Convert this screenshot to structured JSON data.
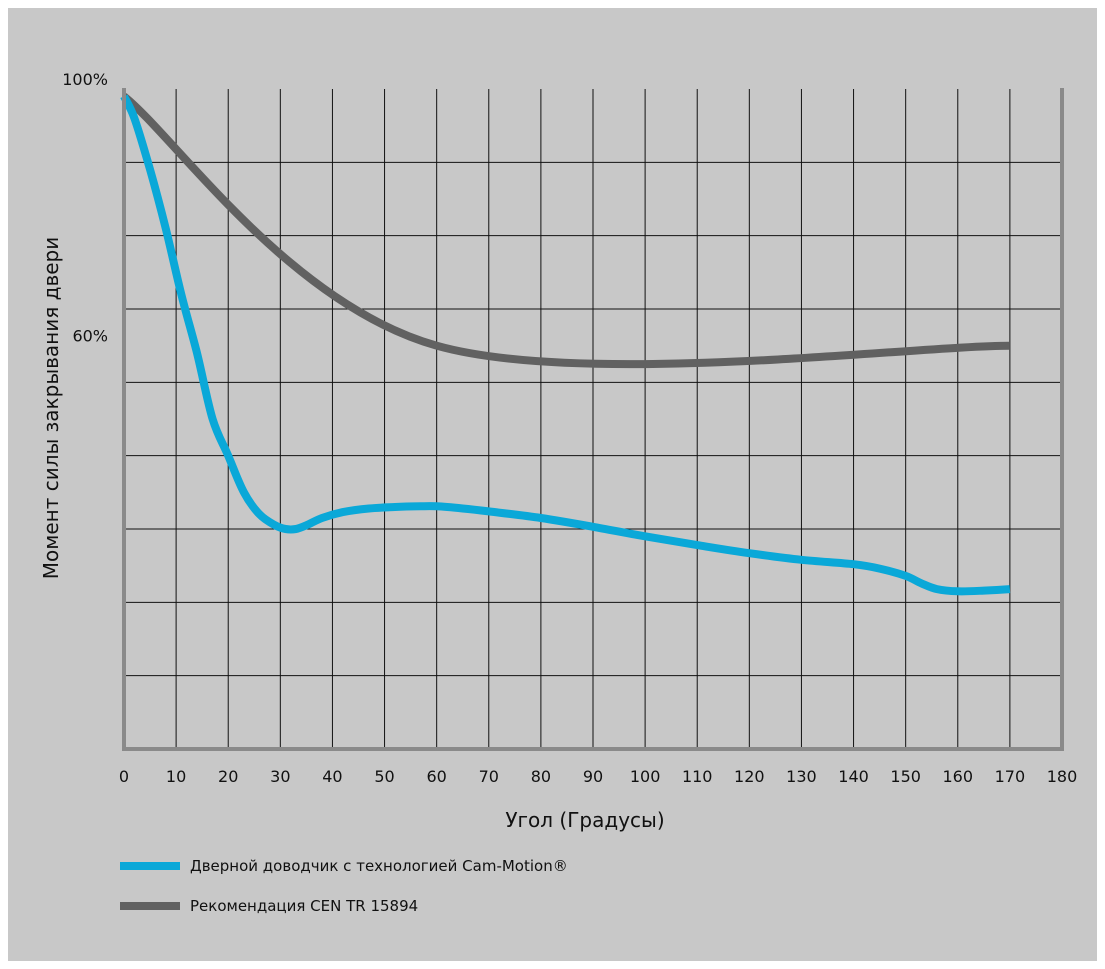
{
  "chart_data": {
    "type": "line",
    "xlabel": "Угол (Градусы)",
    "ylabel": "Момент силы закрывания двери",
    "xlim": [
      0,
      180
    ],
    "ylim": [
      0,
      90
    ],
    "x_ticks": [
      0,
      10,
      20,
      30,
      40,
      50,
      60,
      70,
      80,
      90,
      100,
      110,
      120,
      130,
      140,
      150,
      160,
      170,
      180
    ],
    "x_tick_labels": [
      "0",
      "10",
      "20",
      "30",
      "40",
      "50",
      "60",
      "70",
      "80",
      "90",
      "100",
      "110",
      "120",
      "130",
      "140",
      "150",
      "160",
      "170",
      "180"
    ],
    "y_ticks": [
      0,
      10,
      20,
      30,
      40,
      50,
      60,
      70,
      80,
      90
    ],
    "y_tick_labels": [
      {
        "value": 90,
        "label": "100%"
      },
      {
        "value": 55,
        "label": "60%"
      }
    ],
    "grid": true,
    "legend_position": "bottom-left",
    "series": [
      {
        "name": "Дверной доводчик с технологией Cam-Motion®",
        "color": "#0aa8d8",
        "x": [
          0,
          2,
          5,
          8,
          11,
          14,
          17,
          20,
          23,
          26,
          29,
          31,
          33,
          35,
          38,
          42,
          47,
          52,
          57,
          60,
          65,
          70,
          80,
          90,
          100,
          110,
          120,
          130,
          140,
          145,
          150,
          153,
          156,
          160,
          165,
          170
        ],
        "y": [
          89,
          86,
          79,
          71,
          62,
          54,
          45,
          40,
          35,
          32,
          30.5,
          30,
          30,
          30.5,
          31.5,
          32.3,
          32.8,
          33,
          33.1,
          33.1,
          32.8,
          32.4,
          31.5,
          30.3,
          29,
          27.8,
          26.7,
          25.8,
          25.2,
          24.6,
          23.6,
          22.6,
          21.8,
          21.5,
          21.6,
          21.8
        ]
      },
      {
        "name": "Рекомендация CEN TR 15894",
        "color": "#616161",
        "x": [
          0,
          60,
          170
        ],
        "y": [
          89,
          55,
          55
        ]
      }
    ]
  }
}
